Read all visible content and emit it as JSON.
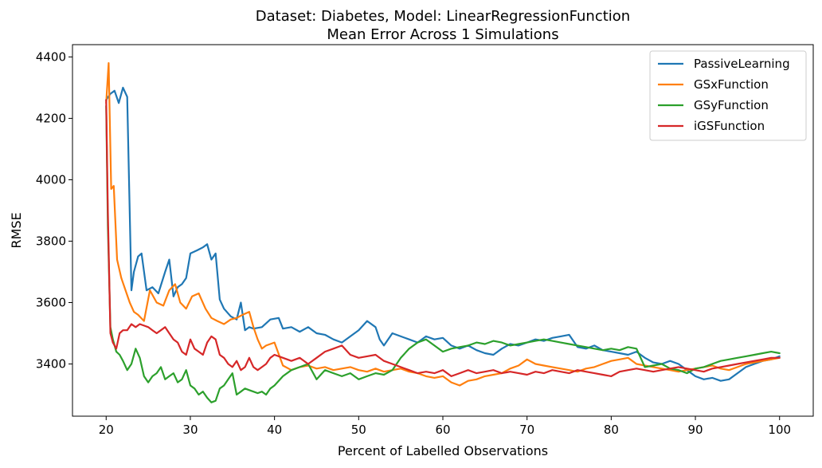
{
  "chart_data": {
    "type": "line",
    "title": "Dataset: Diabetes, Model: LinearRegressionFunction",
    "subtitle": "Mean Error Across 1 Simulations",
    "xlabel": "Percent of Labelled Observations",
    "ylabel": "RMSE",
    "xlim": [
      16,
      104
    ],
    "ylim": [
      3230,
      4440
    ],
    "xticks": [
      20,
      30,
      40,
      50,
      60,
      70,
      80,
      90,
      100
    ],
    "yticks": [
      3400,
      3600,
      3800,
      4000,
      4200,
      4400
    ],
    "grid": false,
    "legend_position": "top-right",
    "series": [
      {
        "name": "PassiveLearning",
        "color": "#1f77b4",
        "x": [
          20,
          20.5,
          21,
          21.5,
          22,
          22.5,
          23,
          23.3,
          23.8,
          24.2,
          24.8,
          25.5,
          26.2,
          27,
          27.5,
          28,
          28.5,
          29,
          29.5,
          30,
          30.8,
          31.5,
          32,
          32.5,
          33,
          33.5,
          34,
          34.8,
          35.5,
          36,
          36.5,
          37,
          37.5,
          38.5,
          39.5,
          40.5,
          41,
          42,
          43,
          44,
          45,
          46,
          47,
          48,
          49,
          50,
          51,
          52,
          52.5,
          53,
          54,
          55,
          56,
          57,
          58,
          59,
          60,
          61,
          62,
          63,
          64,
          65,
          66,
          67,
          68,
          69,
          70,
          71,
          72,
          73,
          74,
          75,
          76,
          77,
          78,
          79,
          80,
          81,
          82,
          83,
          84,
          85,
          86,
          87,
          88,
          89,
          90,
          91,
          92,
          93,
          94,
          95,
          96,
          97,
          98,
          99,
          100
        ],
        "values": [
          4260,
          4280,
          4290,
          4250,
          4300,
          4270,
          3640,
          3700,
          3750,
          3760,
          3640,
          3650,
          3630,
          3700,
          3740,
          3620,
          3650,
          3660,
          3680,
          3760,
          3770,
          3780,
          3790,
          3740,
          3760,
          3610,
          3580,
          3555,
          3545,
          3600,
          3510,
          3520,
          3515,
          3520,
          3545,
          3550,
          3515,
          3520,
          3505,
          3520,
          3500,
          3495,
          3480,
          3470,
          3490,
          3510,
          3540,
          3520,
          3480,
          3460,
          3500,
          3490,
          3480,
          3470,
          3490,
          3480,
          3485,
          3460,
          3450,
          3460,
          3445,
          3435,
          3430,
          3450,
          3465,
          3460,
          3470,
          3480,
          3475,
          3485,
          3490,
          3495,
          3455,
          3450,
          3460,
          3445,
          3440,
          3435,
          3430,
          3440,
          3420,
          3405,
          3400,
          3410,
          3400,
          3380,
          3360,
          3350,
          3355,
          3345,
          3350,
          3370,
          3390,
          3400,
          3410,
          3415,
          3425
        ]
      },
      {
        "name": "GSxFunction",
        "color": "#ff7f0e",
        "x": [
          20,
          20.3,
          20.6,
          20.9,
          21.3,
          21.8,
          22.3,
          22.8,
          23.3,
          23.8,
          24.5,
          25.2,
          26,
          26.8,
          27.5,
          28.2,
          28.8,
          29.5,
          30.2,
          31,
          31.8,
          32.5,
          33.2,
          34,
          34.8,
          35.5,
          36.2,
          37,
          37.5,
          38,
          38.5,
          39,
          40,
          41,
          42,
          43,
          44,
          45,
          46,
          47,
          48,
          49,
          50,
          51,
          52,
          53,
          54,
          55,
          56,
          57,
          58,
          59,
          60,
          61,
          62,
          63,
          64,
          65,
          66,
          67,
          68,
          69,
          70,
          71,
          72,
          73,
          74,
          75,
          76,
          77,
          78,
          79,
          80,
          81,
          82,
          83,
          84,
          85,
          86,
          87,
          88,
          89,
          90,
          91,
          92,
          93,
          94,
          95,
          96,
          97,
          98,
          99,
          100
        ],
        "values": [
          4250,
          4380,
          3970,
          3980,
          3740,
          3680,
          3640,
          3600,
          3570,
          3560,
          3540,
          3640,
          3600,
          3590,
          3640,
          3660,
          3600,
          3580,
          3620,
          3630,
          3580,
          3550,
          3540,
          3530,
          3545,
          3550,
          3560,
          3570,
          3520,
          3480,
          3450,
          3460,
          3470,
          3395,
          3380,
          3390,
          3395,
          3385,
          3390,
          3380,
          3385,
          3390,
          3380,
          3375,
          3385,
          3375,
          3380,
          3385,
          3375,
          3370,
          3360,
          3355,
          3360,
          3340,
          3330,
          3345,
          3350,
          3360,
          3365,
          3370,
          3385,
          3395,
          3415,
          3400,
          3395,
          3390,
          3385,
          3380,
          3375,
          3385,
          3390,
          3400,
          3410,
          3415,
          3420,
          3400,
          3395,
          3390,
          3385,
          3380,
          3375,
          3380,
          3385,
          3390,
          3395,
          3385,
          3380,
          3390,
          3400,
          3405,
          3410,
          3415,
          3420
        ]
      },
      {
        "name": "GSyFunction",
        "color": "#2ca02c",
        "x": [
          20,
          20.2,
          20.5,
          20.8,
          21.2,
          21.6,
          22,
          22.5,
          23,
          23.5,
          24,
          24.5,
          25,
          25.5,
          26,
          26.5,
          27,
          27.5,
          28,
          28.5,
          29,
          29.5,
          30,
          30.5,
          31,
          31.5,
          32,
          32.5,
          33,
          33.5,
          34,
          34.5,
          35,
          35.5,
          36,
          36.5,
          37,
          37.5,
          38,
          38.5,
          39,
          39.5,
          40,
          41,
          42,
          43,
          44,
          45,
          46,
          47,
          48,
          49,
          50,
          51,
          52,
          53,
          54,
          55,
          56,
          57,
          58,
          59,
          60,
          61,
          62,
          63,
          64,
          65,
          66,
          67,
          68,
          69,
          70,
          71,
          72,
          73,
          74,
          75,
          76,
          77,
          78,
          79,
          80,
          81,
          82,
          83,
          84,
          85,
          86,
          87,
          88,
          89,
          90,
          91,
          92,
          93,
          94,
          95,
          96,
          97,
          98,
          99,
          100
        ],
        "values": [
          4240,
          3850,
          3520,
          3480,
          3440,
          3430,
          3410,
          3380,
          3400,
          3450,
          3420,
          3360,
          3340,
          3360,
          3370,
          3390,
          3350,
          3360,
          3370,
          3340,
          3350,
          3380,
          3330,
          3320,
          3300,
          3310,
          3290,
          3275,
          3280,
          3320,
          3330,
          3350,
          3370,
          3300,
          3310,
          3320,
          3315,
          3310,
          3305,
          3310,
          3300,
          3320,
          3330,
          3360,
          3380,
          3390,
          3400,
          3350,
          3380,
          3370,
          3360,
          3370,
          3350,
          3360,
          3370,
          3365,
          3380,
          3420,
          3450,
          3470,
          3480,
          3460,
          3440,
          3450,
          3455,
          3460,
          3470,
          3465,
          3475,
          3470,
          3460,
          3465,
          3470,
          3475,
          3480,
          3475,
          3470,
          3465,
          3460,
          3455,
          3450,
          3445,
          3450,
          3445,
          3455,
          3450,
          3390,
          3395,
          3400,
          3385,
          3380,
          3370,
          3385,
          3390,
          3400,
          3410,
          3415,
          3420,
          3425,
          3430,
          3435,
          3440,
          3435
        ]
      },
      {
        "name": "iGSFunction",
        "color": "#d62728",
        "x": [
          20,
          20.2,
          20.5,
          20.8,
          21.2,
          21.6,
          22,
          22.5,
          23,
          23.5,
          24,
          24.5,
          25,
          25.5,
          26,
          26.5,
          27,
          27.5,
          28,
          28.5,
          29,
          29.5,
          30,
          30.5,
          31,
          31.5,
          32,
          32.5,
          33,
          33.5,
          34,
          34.5,
          35,
          35.5,
          36,
          36.5,
          37,
          37.5,
          38,
          38.5,
          39,
          39.5,
          40,
          41,
          42,
          43,
          44,
          45,
          46,
          47,
          48,
          49,
          50,
          51,
          52,
          53,
          54,
          55,
          56,
          57,
          58,
          59,
          60,
          61,
          62,
          63,
          64,
          65,
          66,
          67,
          68,
          69,
          70,
          71,
          72,
          73,
          74,
          75,
          76,
          77,
          78,
          79,
          80,
          81,
          82,
          83,
          84,
          85,
          86,
          87,
          88,
          89,
          90,
          91,
          92,
          93,
          94,
          95,
          96,
          97,
          98,
          99,
          100
        ],
        "values": [
          4260,
          3900,
          3500,
          3470,
          3450,
          3500,
          3510,
          3510,
          3530,
          3520,
          3530,
          3525,
          3520,
          3510,
          3500,
          3510,
          3520,
          3500,
          3480,
          3470,
          3440,
          3430,
          3480,
          3450,
          3440,
          3430,
          3470,
          3490,
          3480,
          3430,
          3420,
          3400,
          3390,
          3410,
          3380,
          3390,
          3420,
          3390,
          3380,
          3390,
          3400,
          3420,
          3430,
          3420,
          3410,
          3420,
          3400,
          3420,
          3440,
          3450,
          3460,
          3430,
          3420,
          3425,
          3430,
          3410,
          3400,
          3390,
          3380,
          3370,
          3375,
          3370,
          3380,
          3360,
          3370,
          3380,
          3370,
          3375,
          3380,
          3370,
          3375,
          3370,
          3365,
          3375,
          3370,
          3380,
          3375,
          3370,
          3380,
          3375,
          3370,
          3365,
          3360,
          3375,
          3380,
          3385,
          3380,
          3375,
          3380,
          3385,
          3390,
          3385,
          3380,
          3375,
          3385,
          3390,
          3395,
          3400,
          3405,
          3410,
          3415,
          3420,
          3420
        ]
      }
    ]
  }
}
